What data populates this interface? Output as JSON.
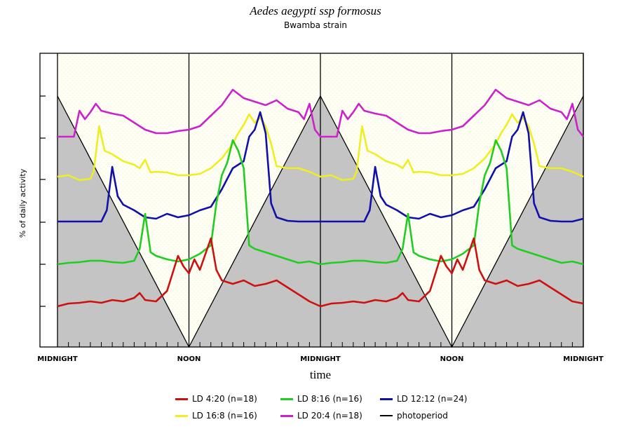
{
  "chart_data": {
    "type": "line",
    "title": "Aedes aegypti ssp formosus",
    "subtitle": "Bwamba strain",
    "xlabel": "time",
    "ylabel": "% of daily activity",
    "x_tick_labels": [
      "MIDNIGHT",
      "NOON",
      "MIDNIGHT",
      "NOON",
      "MIDNIGHT"
    ],
    "x_range_hours": [
      0,
      48
    ],
    "grid": false,
    "legend_position": "bottom",
    "colors": {
      "LD 4:20": "#cc1111",
      "LD 8:16": "#22cc22",
      "LD 12:12": "#1111aa",
      "LD 16:8": "#eeee22",
      "LD 20:4": "#cc22cc",
      "photoperiod": "#000000",
      "dark": "#c4c4c4",
      "light": "#fffff4"
    },
    "series": [
      {
        "name": "LD 20:4 (n=18)",
        "color": "#cc22cc",
        "points": [
          [
            0,
            195
          ],
          [
            1.5,
            195
          ],
          [
            2,
            158
          ],
          [
            2.5,
            170
          ],
          [
            3,
            160
          ],
          [
            3.5,
            148
          ],
          [
            4,
            158
          ],
          [
            5,
            162
          ],
          [
            6,
            165
          ],
          [
            7,
            175
          ],
          [
            8,
            185
          ],
          [
            9,
            190
          ],
          [
            10,
            190
          ],
          [
            11,
            187
          ],
          [
            12,
            185
          ],
          [
            13,
            180
          ],
          [
            14,
            165
          ],
          [
            15,
            150
          ],
          [
            16,
            128
          ],
          [
            17,
            140
          ],
          [
            18,
            145
          ],
          [
            19,
            150
          ],
          [
            20,
            143
          ],
          [
            21,
            155
          ],
          [
            22,
            160
          ],
          [
            22.5,
            170
          ],
          [
            23,
            148
          ],
          [
            23.5,
            185
          ],
          [
            24,
            195
          ],
          [
            25.5,
            195
          ],
          [
            26,
            158
          ],
          [
            26.5,
            170
          ],
          [
            27,
            160
          ],
          [
            27.5,
            148
          ],
          [
            28,
            158
          ],
          [
            29,
            162
          ],
          [
            30,
            165
          ],
          [
            31,
            175
          ],
          [
            32,
            185
          ],
          [
            33,
            190
          ],
          [
            34,
            190
          ],
          [
            35,
            187
          ],
          [
            36,
            185
          ],
          [
            37,
            180
          ],
          [
            38,
            165
          ],
          [
            39,
            150
          ],
          [
            40,
            128
          ],
          [
            41,
            140
          ],
          [
            42,
            145
          ],
          [
            43,
            150
          ],
          [
            44,
            143
          ],
          [
            45,
            155
          ],
          [
            46,
            160
          ],
          [
            46.5,
            170
          ],
          [
            47,
            148
          ],
          [
            47.5,
            185
          ],
          [
            48,
            195
          ]
        ]
      },
      {
        "name": "LD 16:8 (n=16)",
        "color": "#eeee22",
        "points": [
          [
            0,
            252
          ],
          [
            1,
            250
          ],
          [
            2,
            257
          ],
          [
            3,
            255
          ],
          [
            3.3,
            245
          ],
          [
            3.8,
            180
          ],
          [
            4.3,
            215
          ],
          [
            5,
            220
          ],
          [
            6,
            230
          ],
          [
            7,
            235
          ],
          [
            7.5,
            240
          ],
          [
            8,
            228
          ],
          [
            8.5,
            246
          ],
          [
            9,
            245
          ],
          [
            10,
            246
          ],
          [
            11,
            250
          ],
          [
            12,
            250
          ],
          [
            13,
            248
          ],
          [
            14,
            240
          ],
          [
            15,
            226
          ],
          [
            16,
            205
          ],
          [
            16.5,
            190
          ],
          [
            17,
            178
          ],
          [
            17.5,
            163
          ],
          [
            18,
            175
          ],
          [
            18.5,
            168
          ],
          [
            19,
            180
          ],
          [
            19.5,
            205
          ],
          [
            20,
            237
          ],
          [
            21,
            240
          ],
          [
            22,
            240
          ],
          [
            23,
            245
          ],
          [
            24,
            252
          ],
          [
            25,
            250
          ],
          [
            26,
            257
          ],
          [
            27,
            255
          ],
          [
            27.3,
            245
          ],
          [
            27.8,
            180
          ],
          [
            28.3,
            215
          ],
          [
            29,
            220
          ],
          [
            30,
            230
          ],
          [
            31,
            235
          ],
          [
            31.5,
            240
          ],
          [
            32,
            228
          ],
          [
            32.5,
            246
          ],
          [
            33,
            245
          ],
          [
            34,
            246
          ],
          [
            35,
            250
          ],
          [
            36,
            250
          ],
          [
            37,
            248
          ],
          [
            38,
            240
          ],
          [
            39,
            226
          ],
          [
            40,
            205
          ],
          [
            40.5,
            190
          ],
          [
            41,
            178
          ],
          [
            41.5,
            163
          ],
          [
            42,
            175
          ],
          [
            42.5,
            168
          ],
          [
            43,
            180
          ],
          [
            43.5,
            205
          ],
          [
            44,
            237
          ],
          [
            45,
            240
          ],
          [
            46,
            240
          ],
          [
            47,
            245
          ],
          [
            48,
            252
          ]
        ]
      },
      {
        "name": "LD 12:12 (n=24)",
        "color": "#1111aa",
        "points": [
          [
            0,
            316
          ],
          [
            1,
            316
          ],
          [
            2,
            316
          ],
          [
            3,
            316
          ],
          [
            4,
            316
          ],
          [
            4.5,
            300
          ],
          [
            5,
            238
          ],
          [
            5.5,
            280
          ],
          [
            6,
            292
          ],
          [
            7,
            300
          ],
          [
            8,
            310
          ],
          [
            9,
            312
          ],
          [
            10,
            305
          ],
          [
            11,
            310
          ],
          [
            12,
            307
          ],
          [
            13,
            300
          ],
          [
            14,
            295
          ],
          [
            15,
            270
          ],
          [
            16,
            240
          ],
          [
            17,
            230
          ],
          [
            17.5,
            195
          ],
          [
            18,
            185
          ],
          [
            18.5,
            160
          ],
          [
            19,
            190
          ],
          [
            19.5,
            290
          ],
          [
            20,
            310
          ],
          [
            21,
            315
          ],
          [
            22,
            316
          ],
          [
            23,
            316
          ],
          [
            24,
            316
          ],
          [
            25,
            316
          ],
          [
            26,
            316
          ],
          [
            27,
            316
          ],
          [
            28,
            316
          ],
          [
            28.5,
            300
          ],
          [
            29,
            238
          ],
          [
            29.5,
            280
          ],
          [
            30,
            292
          ],
          [
            31,
            300
          ],
          [
            32,
            310
          ],
          [
            33,
            312
          ],
          [
            34,
            305
          ],
          [
            35,
            310
          ],
          [
            36,
            307
          ],
          [
            37,
            300
          ],
          [
            38,
            295
          ],
          [
            39,
            270
          ],
          [
            40,
            240
          ],
          [
            41,
            230
          ],
          [
            41.5,
            195
          ],
          [
            42,
            185
          ],
          [
            42.5,
            160
          ],
          [
            43,
            190
          ],
          [
            43.5,
            290
          ],
          [
            44,
            310
          ],
          [
            45,
            315
          ],
          [
            46,
            316
          ],
          [
            47,
            316
          ],
          [
            48,
            312
          ]
        ]
      },
      {
        "name": "LD 8:16 (n=16)",
        "color": "#22cc22",
        "points": [
          [
            0,
            377
          ],
          [
            1,
            375
          ],
          [
            2,
            374
          ],
          [
            3,
            372
          ],
          [
            4,
            372
          ],
          [
            5,
            374
          ],
          [
            6,
            375
          ],
          [
            7,
            372
          ],
          [
            7.5,
            355
          ],
          [
            8,
            305
          ],
          [
            8.5,
            360
          ],
          [
            9,
            365
          ],
          [
            10,
            370
          ],
          [
            11,
            373
          ],
          [
            12,
            370
          ],
          [
            13,
            362
          ],
          [
            14,
            350
          ],
          [
            14.5,
            290
          ],
          [
            15,
            250
          ],
          [
            15.5,
            232
          ],
          [
            16,
            200
          ],
          [
            16.5,
            215
          ],
          [
            17,
            240
          ],
          [
            17.5,
            350
          ],
          [
            18,
            355
          ],
          [
            19,
            360
          ],
          [
            20,
            365
          ],
          [
            21,
            370
          ],
          [
            22,
            375
          ],
          [
            23,
            373
          ],
          [
            24,
            377
          ],
          [
            25,
            375
          ],
          [
            26,
            374
          ],
          [
            27,
            372
          ],
          [
            28,
            372
          ],
          [
            29,
            374
          ],
          [
            30,
            375
          ],
          [
            31,
            372
          ],
          [
            31.5,
            355
          ],
          [
            32,
            305
          ],
          [
            32.5,
            360
          ],
          [
            33,
            365
          ],
          [
            34,
            370
          ],
          [
            35,
            373
          ],
          [
            36,
            370
          ],
          [
            37,
            362
          ],
          [
            38,
            350
          ],
          [
            38.5,
            290
          ],
          [
            39,
            250
          ],
          [
            39.5,
            232
          ],
          [
            40,
            200
          ],
          [
            40.5,
            215
          ],
          [
            41,
            240
          ],
          [
            41.5,
            350
          ],
          [
            42,
            355
          ],
          [
            43,
            360
          ],
          [
            44,
            365
          ],
          [
            45,
            370
          ],
          [
            46,
            375
          ],
          [
            47,
            373
          ],
          [
            48,
            377
          ]
        ]
      },
      {
        "name": "LD 4:20 (n=18)",
        "color": "#cc1111",
        "points": [
          [
            0,
            437
          ],
          [
            1,
            433
          ],
          [
            2,
            432
          ],
          [
            3,
            430
          ],
          [
            4,
            432
          ],
          [
            5,
            428
          ],
          [
            6,
            430
          ],
          [
            7,
            425
          ],
          [
            7.5,
            418
          ],
          [
            8,
            428
          ],
          [
            9,
            430
          ],
          [
            10,
            415
          ],
          [
            11,
            365
          ],
          [
            11.5,
            380
          ],
          [
            12,
            390
          ],
          [
            12.5,
            370
          ],
          [
            13,
            385
          ],
          [
            14,
            340
          ],
          [
            14.5,
            385
          ],
          [
            15,
            400
          ],
          [
            16,
            405
          ],
          [
            17,
            400
          ],
          [
            18,
            408
          ],
          [
            19,
            405
          ],
          [
            20,
            400
          ],
          [
            21,
            410
          ],
          [
            22,
            420
          ],
          [
            23,
            430
          ],
          [
            24,
            437
          ],
          [
            25,
            433
          ],
          [
            26,
            432
          ],
          [
            27,
            430
          ],
          [
            28,
            432
          ],
          [
            29,
            428
          ],
          [
            30,
            430
          ],
          [
            31,
            425
          ],
          [
            31.5,
            418
          ],
          [
            32,
            428
          ],
          [
            33,
            430
          ],
          [
            34,
            415
          ],
          [
            35,
            365
          ],
          [
            35.5,
            380
          ],
          [
            36,
            390
          ],
          [
            36.5,
            370
          ],
          [
            37,
            385
          ],
          [
            38,
            340
          ],
          [
            38.5,
            385
          ],
          [
            39,
            400
          ],
          [
            40,
            405
          ],
          [
            41,
            400
          ],
          [
            42,
            408
          ],
          [
            43,
            405
          ],
          [
            44,
            400
          ],
          [
            45,
            410
          ],
          [
            46,
            420
          ],
          [
            47,
            430
          ],
          [
            48,
            433
          ]
        ]
      }
    ]
  },
  "legend": [
    {
      "label": "LD 4:20 (n=18)",
      "color": "#cc1111"
    },
    {
      "label": "LD 8:16 (n=16)",
      "color": "#22cc22"
    },
    {
      "label": "LD 12:12 (n=24)",
      "color": "#1111aa"
    },
    {
      "label": "LD 16:8 (n=16)",
      "color": "#eeee22"
    },
    {
      "label": "LD 20:4 (n=18)",
      "color": "#cc22cc"
    },
    {
      "label": "photoperiod",
      "color": "#000000"
    }
  ]
}
